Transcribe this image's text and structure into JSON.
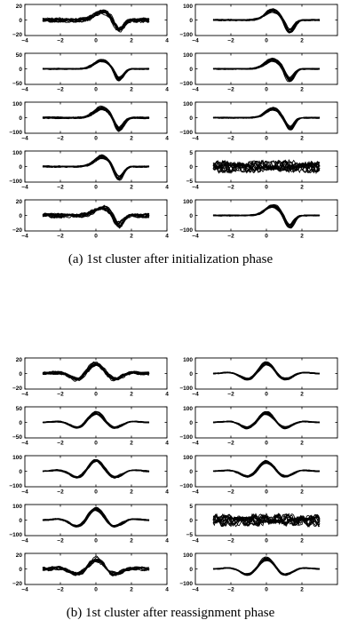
{
  "figure": {
    "captions": [
      "(a) 1st cluster after initialization phase",
      "(b) 1st cluster after reassignment phase"
    ]
  },
  "chart_data": [
    {
      "type": "line",
      "title": "(a) 1st cluster after initialization phase",
      "rows": 5,
      "cols": 2,
      "line_color": "#000000",
      "panels": [
        {
          "row": 0,
          "col": 0,
          "xlim": [
            -4,
            4
          ],
          "ylim": [
            -20,
            20
          ],
          "xticks": [
            -4,
            -2,
            0,
            2,
            4
          ],
          "yticks": [
            -20,
            0,
            20
          ],
          "xrange": [
            -3,
            3
          ],
          "noise": 0.35,
          "amp": 0.55,
          "shape": "wavelet"
        },
        {
          "row": 0,
          "col": 1,
          "xlim": [
            -4,
            4
          ],
          "ylim": [
            -100,
            100
          ],
          "xticks": [
            -4,
            -2,
            0,
            2
          ],
          "yticks": [
            -100,
            0,
            100
          ],
          "xrange": [
            -3,
            3
          ],
          "noise": 0.12,
          "amp": 0.65,
          "shape": "wavelet"
        },
        {
          "row": 1,
          "col": 0,
          "xlim": [
            -4,
            4
          ],
          "ylim": [
            -50,
            50
          ],
          "xticks": [
            -4,
            -2,
            0,
            2,
            4
          ],
          "yticks": [
            -50,
            0,
            50
          ],
          "xrange": [
            -3,
            3
          ],
          "noise": 0.1,
          "amp": 0.6,
          "shape": "wavelet"
        },
        {
          "row": 1,
          "col": 1,
          "xlim": [
            -4,
            4
          ],
          "ylim": [
            -100,
            100
          ],
          "xticks": [
            -4,
            -2,
            0,
            2
          ],
          "yticks": [
            -100,
            0,
            100
          ],
          "xrange": [
            -3,
            3
          ],
          "noise": 0.1,
          "amp": 0.65,
          "shape": "wavelet"
        },
        {
          "row": 2,
          "col": 0,
          "xlim": [
            -4,
            4
          ],
          "ylim": [
            -100,
            100
          ],
          "xticks": [
            -4,
            -2,
            0,
            2,
            4
          ],
          "yticks": [
            -100,
            0,
            100
          ],
          "xrange": [
            -3,
            3
          ],
          "noise": 0.15,
          "amp": 0.7,
          "shape": "wavelet"
        },
        {
          "row": 2,
          "col": 1,
          "xlim": [
            -4,
            4
          ],
          "ylim": [
            -100,
            100
          ],
          "xticks": [
            -4,
            -2,
            0,
            2
          ],
          "yticks": [
            -100,
            0,
            100
          ],
          "xrange": [
            -3,
            3
          ],
          "noise": 0.1,
          "amp": 0.65,
          "shape": "wavelet"
        },
        {
          "row": 3,
          "col": 0,
          "xlim": [
            -4,
            4
          ],
          "ylim": [
            -100,
            100
          ],
          "xticks": [
            -4,
            -2,
            0,
            2,
            4
          ],
          "yticks": [
            -100,
            0,
            100
          ],
          "xrange": [
            -3,
            3
          ],
          "noise": 0.12,
          "amp": 0.7,
          "shape": "wavelet"
        },
        {
          "row": 3,
          "col": 1,
          "xlim": [
            -4,
            4
          ],
          "ylim": [
            -5,
            5
          ],
          "xticks": [
            -4,
            -2,
            0,
            2
          ],
          "yticks": [
            -5,
            0,
            5
          ],
          "xrange": [
            -3,
            3
          ],
          "noise": 0.4,
          "amp": 0.12,
          "shape": "noise"
        },
        {
          "row": 4,
          "col": 0,
          "xlim": [
            -4,
            4
          ],
          "ylim": [
            -20,
            20
          ],
          "xticks": [
            -4,
            -2,
            0,
            2,
            4
          ],
          "yticks": [
            -20,
            0,
            20
          ],
          "xrange": [
            -3,
            3
          ],
          "noise": 0.35,
          "amp": 0.55,
          "shape": "wavelet"
        },
        {
          "row": 4,
          "col": 1,
          "xlim": [
            -4,
            4
          ],
          "ylim": [
            -100,
            100
          ],
          "xticks": [
            -4,
            -2,
            0,
            2
          ],
          "yticks": [
            -100,
            0,
            100
          ],
          "xrange": [
            -3,
            3
          ],
          "noise": 0.1,
          "amp": 0.65,
          "shape": "wavelet"
        }
      ]
    },
    {
      "type": "line",
      "title": "(b) 1st cluster after reassignment phase",
      "rows": 5,
      "cols": 2,
      "line_color": "#000000",
      "panels": [
        {
          "row": 0,
          "col": 0,
          "xlim": [
            -4,
            4
          ],
          "ylim": [
            -20,
            20
          ],
          "xticks": [
            -4,
            -2,
            0,
            2,
            4
          ],
          "yticks": [
            -20,
            0,
            20
          ],
          "xrange": [
            -3,
            3
          ],
          "noise": 0.25,
          "amp": 0.65,
          "shape": "morlet"
        },
        {
          "row": 0,
          "col": 1,
          "xlim": [
            -4,
            4
          ],
          "ylim": [
            -100,
            100
          ],
          "xticks": [
            -4,
            -2,
            0,
            2
          ],
          "yticks": [
            -100,
            0,
            100
          ],
          "xrange": [
            -3,
            3
          ],
          "noise": 0.08,
          "amp": 0.65,
          "shape": "morlet"
        },
        {
          "row": 1,
          "col": 0,
          "xlim": [
            -4,
            4
          ],
          "ylim": [
            -50,
            50
          ],
          "xticks": [
            -4,
            -2,
            0,
            2,
            4
          ],
          "yticks": [
            -50,
            0,
            50
          ],
          "xrange": [
            -3,
            3
          ],
          "noise": 0.08,
          "amp": 0.6,
          "shape": "morlet"
        },
        {
          "row": 1,
          "col": 1,
          "xlim": [
            -4,
            4
          ],
          "ylim": [
            -100,
            100
          ],
          "xticks": [
            -4,
            -2,
            0,
            2
          ],
          "yticks": [
            -100,
            0,
            100
          ],
          "xrange": [
            -3,
            3
          ],
          "noise": 0.08,
          "amp": 0.6,
          "shape": "morlet"
        },
        {
          "row": 2,
          "col": 0,
          "xlim": [
            -4,
            4
          ],
          "ylim": [
            -100,
            100
          ],
          "xticks": [
            -4,
            -2,
            0,
            2,
            4
          ],
          "yticks": [
            -100,
            0,
            100
          ],
          "xrange": [
            -3,
            3
          ],
          "noise": 0.1,
          "amp": 0.7,
          "shape": "morlet"
        },
        {
          "row": 2,
          "col": 1,
          "xlim": [
            -4,
            4
          ],
          "ylim": [
            -100,
            100
          ],
          "xticks": [
            -4,
            -2,
            0,
            2
          ],
          "yticks": [
            -100,
            0,
            100
          ],
          "xrange": [
            -3,
            3
          ],
          "noise": 0.08,
          "amp": 0.6,
          "shape": "morlet"
        },
        {
          "row": 3,
          "col": 0,
          "xlim": [
            -4,
            4
          ],
          "ylim": [
            -100,
            100
          ],
          "xticks": [
            -4,
            -2,
            0,
            2,
            4
          ],
          "yticks": [
            -100,
            0,
            100
          ],
          "xrange": [
            -3,
            3
          ],
          "noise": 0.1,
          "amp": 0.7,
          "shape": "morlet"
        },
        {
          "row": 3,
          "col": 1,
          "xlim": [
            -4,
            4
          ],
          "ylim": [
            -5,
            5
          ],
          "xticks": [
            -4,
            -2,
            0,
            2
          ],
          "yticks": [
            -5,
            0,
            5
          ],
          "xrange": [
            -3,
            3
          ],
          "noise": 0.4,
          "amp": 0.12,
          "shape": "noise"
        },
        {
          "row": 4,
          "col": 0,
          "xlim": [
            -4,
            4
          ],
          "ylim": [
            -20,
            20
          ],
          "xticks": [
            -4,
            -2,
            0,
            2,
            4
          ],
          "yticks": [
            -20,
            0,
            20
          ],
          "xrange": [
            -3,
            3
          ],
          "noise": 0.3,
          "amp": 0.6,
          "shape": "morlet"
        },
        {
          "row": 4,
          "col": 1,
          "xlim": [
            -4,
            4
          ],
          "ylim": [
            -100,
            100
          ],
          "xticks": [
            -4,
            -2,
            0,
            2
          ],
          "yticks": [
            -100,
            0,
            100
          ],
          "xrange": [
            -3,
            3
          ],
          "noise": 0.08,
          "amp": 0.65,
          "shape": "morlet"
        }
      ]
    }
  ]
}
